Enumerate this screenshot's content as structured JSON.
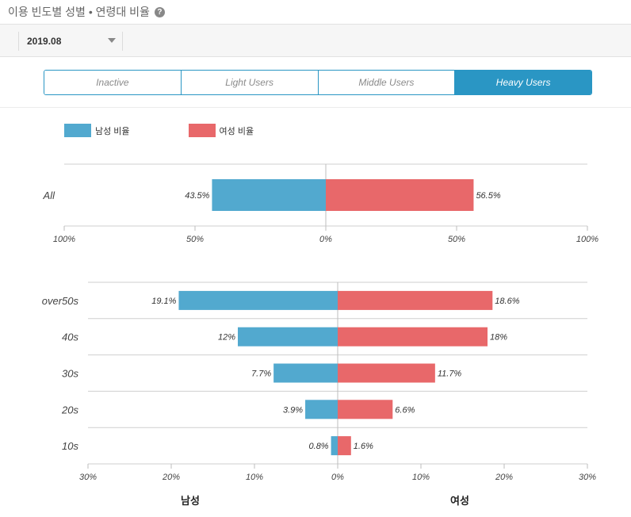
{
  "header": {
    "title": "이용 빈도별 성별 • 연령대 비율",
    "help_icon": "question-circle-icon"
  },
  "filter": {
    "date": "2019.08"
  },
  "tabs": [
    {
      "label": "Inactive",
      "active": false
    },
    {
      "label": "Light Users",
      "active": false
    },
    {
      "label": "Middle Users",
      "active": false
    },
    {
      "label": "Heavy Users",
      "active": true
    }
  ],
  "colors": {
    "male": "#52a9cf",
    "female": "#e8686a",
    "accent": "#2a96c4"
  },
  "legend": {
    "male": "남성 비율",
    "female": "여성 비율"
  },
  "footer": {
    "male": "남성",
    "female": "여성"
  },
  "chart_data": [
    {
      "type": "bar",
      "orientation": "horizontal-diverging",
      "categories": [
        "All"
      ],
      "series": [
        {
          "name": "남성 비율",
          "values": [
            43.5
          ]
        },
        {
          "name": "여성 비율",
          "values": [
            56.5
          ]
        }
      ],
      "xlim": [
        -100,
        100
      ],
      "ticks": [
        "100%",
        "50%",
        "0%",
        "50%",
        "100%"
      ]
    },
    {
      "type": "bar",
      "orientation": "horizontal-diverging",
      "categories": [
        "over50s",
        "40s",
        "30s",
        "20s",
        "10s"
      ],
      "series": [
        {
          "name": "남성 비율",
          "values": [
            19.1,
            12,
            7.7,
            3.9,
            0.8
          ]
        },
        {
          "name": "여성 비율",
          "values": [
            18.6,
            18,
            11.7,
            6.6,
            1.6
          ]
        }
      ],
      "xlim": [
        -30,
        30
      ],
      "ticks": [
        "30%",
        "20%",
        "10%",
        "0%",
        "10%",
        "20%",
        "30%"
      ]
    }
  ]
}
